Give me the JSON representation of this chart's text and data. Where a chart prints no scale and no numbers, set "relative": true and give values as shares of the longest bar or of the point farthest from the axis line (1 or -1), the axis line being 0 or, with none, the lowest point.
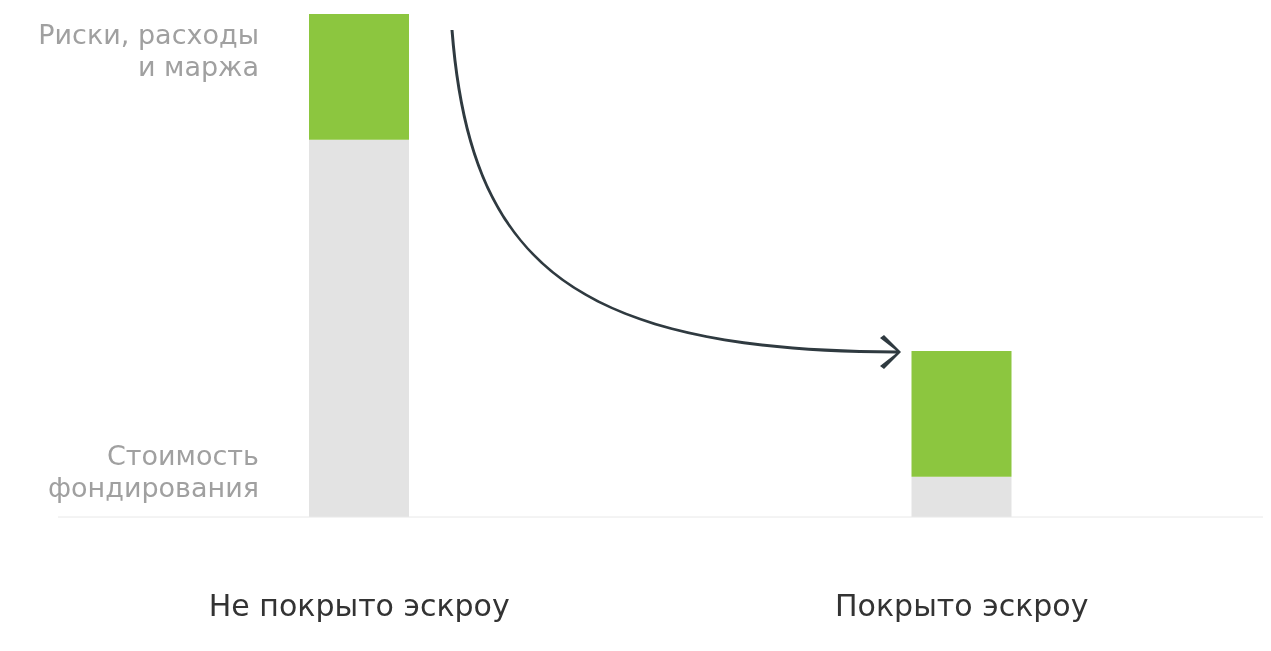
{
  "chart_data": {
    "type": "bar",
    "stacked": true,
    "relative": true,
    "categories": [
      "Не покрыто эскроу",
      "Покрыто эскроу"
    ],
    "series": [
      {
        "name": "Стоимость фондирования",
        "color": "#e3e3e3",
        "values": [
          0.75,
          0.08
        ]
      },
      {
        "name": "Риски, расходы и маржа",
        "color": "#8cc63f",
        "values": [
          0.25,
          0.25
        ]
      }
    ]
  }
}
